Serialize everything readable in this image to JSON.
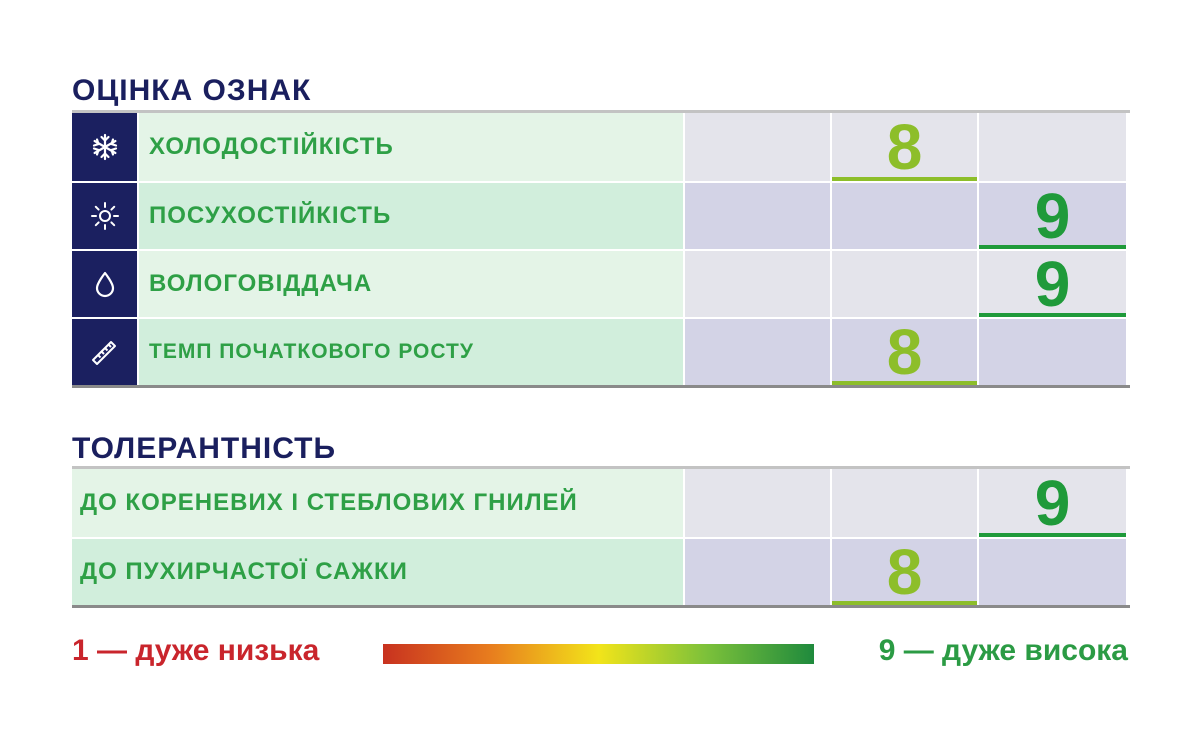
{
  "sections": {
    "traits": {
      "title": "ОЦІНКА ОЗНАК",
      "rows": [
        {
          "icon": "snowflake-icon",
          "label": "ХОЛОДОСТІЙКІСТЬ",
          "score": "8"
        },
        {
          "icon": "sun-icon",
          "label": "ПОСУХОСТІЙКІСТЬ",
          "score": "9"
        },
        {
          "icon": "drop-icon",
          "label": "ВОЛОГОВІДДАЧА",
          "score": "9"
        },
        {
          "icon": "ruler-icon",
          "label": "ТЕМП ПОЧАТКОВОГО РОСТУ",
          "score": "8"
        }
      ]
    },
    "tolerance": {
      "title": "ТОЛЕРАНТНІСТЬ",
      "rows": [
        {
          "label": "ДО КОРЕНЕВИХ І СТЕБЛОВИХ ГНИЛЕЙ",
          "score": "9"
        },
        {
          "label": "ДО ПУХИРЧАСТОЇ САЖКИ",
          "score": "8"
        }
      ]
    }
  },
  "legend": {
    "low": "1 — дуже низька",
    "high": "9 — дуже висока"
  },
  "colors": {
    "score_8": "#8dbe2a",
    "score_9": "#1f9a3a",
    "title": "#1a1f5e",
    "label": "#2ea046"
  }
}
